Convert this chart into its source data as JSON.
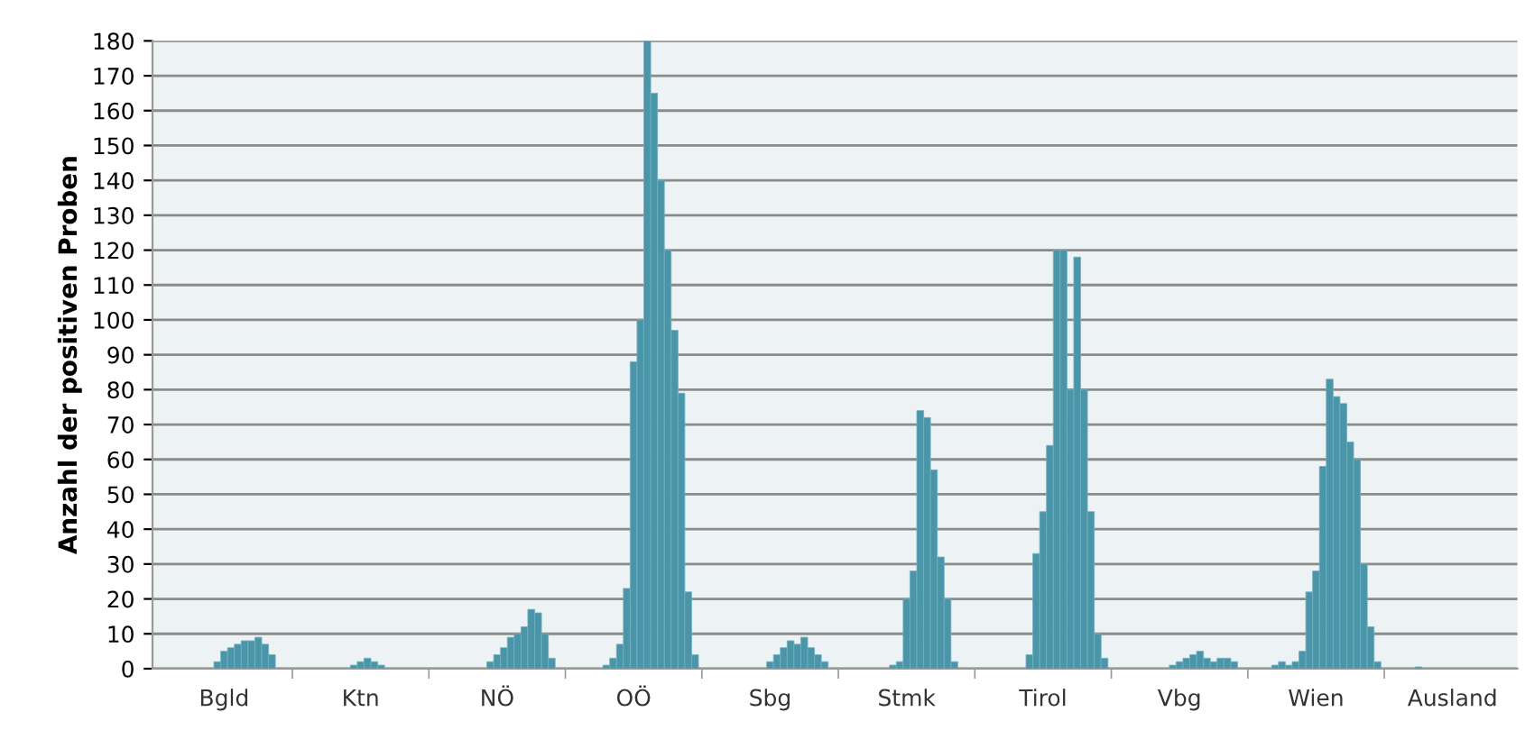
{
  "chart_data": {
    "type": "bar",
    "ylabel": "Anzahl der positiven Proben",
    "categories": [
      null,
      null,
      null,
      null,
      null,
      null,
      null,
      null,
      null,
      null,
      "Bgld",
      null,
      null,
      null,
      null,
      null,
      null,
      null,
      null,
      null,
      null,
      null,
      null,
      null,
      null,
      null,
      null,
      null,
      null,
      null,
      "Ktn",
      null,
      null,
      null,
      null,
      null,
      null,
      null,
      null,
      null,
      null,
      null,
      null,
      null,
      null,
      null,
      null,
      null,
      null,
      null,
      "NÖ",
      null,
      null,
      null,
      null,
      null,
      null,
      null,
      null,
      null,
      null,
      null,
      null,
      null,
      null,
      null,
      null,
      null,
      null,
      null,
      "OÖ",
      null,
      null,
      null,
      null,
      null,
      null,
      null,
      null,
      null,
      null,
      null,
      null,
      null,
      null,
      null,
      null,
      null,
      null,
      null,
      "Sbg",
      null,
      null,
      null,
      null,
      null,
      null,
      null,
      null,
      null,
      null,
      null,
      null,
      null,
      null,
      null,
      null,
      null,
      null,
      null,
      "Stmk",
      null,
      null,
      null,
      null,
      null,
      null,
      null,
      null,
      null,
      null,
      null,
      null,
      null,
      null,
      null,
      null,
      null,
      null,
      null,
      "Tirol",
      null,
      null,
      null,
      null,
      null,
      null,
      null,
      null,
      null,
      null,
      null,
      null,
      null,
      null,
      null,
      null,
      null,
      null,
      null,
      "Vbg",
      null,
      null,
      null,
      null,
      null,
      null,
      null,
      null,
      null,
      null,
      null,
      null,
      null,
      null,
      null,
      null,
      null,
      null,
      null,
      "Wien",
      null,
      null,
      null,
      null,
      null,
      null,
      null,
      null,
      null,
      null,
      null,
      null,
      null,
      null,
      null,
      null,
      null,
      null,
      null,
      "Ausland",
      null,
      null,
      null,
      null,
      null,
      null,
      null,
      null,
      null
    ],
    "values": [
      null,
      null,
      null,
      null,
      null,
      null,
      null,
      null,
      null,
      2,
      5,
      6,
      7,
      8,
      8,
      9,
      7,
      4,
      null,
      null,
      null,
      null,
      null,
      null,
      null,
      null,
      null,
      null,
      null,
      1,
      2,
      3,
      2,
      1,
      null,
      null,
      null,
      null,
      null,
      null,
      null,
      null,
      null,
      null,
      null,
      null,
      null,
      null,
      null,
      2,
      4,
      6,
      9,
      10,
      12,
      17,
      16,
      10,
      3,
      null,
      null,
      null,
      null,
      null,
      null,
      null,
      1,
      3,
      7,
      23,
      88,
      100,
      180,
      165,
      140,
      120,
      97,
      79,
      22,
      4,
      null,
      null,
      null,
      null,
      null,
      null,
      null,
      null,
      null,
      null,
      2,
      4,
      6,
      8,
      7,
      9,
      6,
      4,
      2,
      null,
      null,
      null,
      null,
      null,
      null,
      null,
      null,
      null,
      1,
      2,
      20,
      28,
      74,
      72,
      57,
      32,
      20,
      2,
      null,
      null,
      null,
      null,
      null,
      null,
      null,
      null,
      null,
      null,
      4,
      33,
      45,
      64,
      120,
      120,
      80,
      118,
      80,
      45,
      10,
      3,
      null,
      null,
      null,
      null,
      null,
      null,
      null,
      null,
      null,
      1,
      2,
      3,
      4,
      5,
      3,
      2,
      3,
      3,
      2,
      null,
      null,
      null,
      null,
      null,
      1,
      2,
      1,
      2,
      5,
      22,
      28,
      58,
      83,
      78,
      76,
      65,
      60,
      30,
      12,
      2,
      null,
      null,
      null,
      null,
      null,
      0.5,
      null,
      null,
      null,
      null,
      null,
      null,
      null,
      null,
      null,
      null,
      null,
      null,
      null,
      null
    ],
    "color": "#4a95a8",
    "ylim": [
      0,
      180
    ],
    "yticks": [
      0,
      10,
      20,
      30,
      40,
      50,
      60,
      70,
      80,
      90,
      100,
      110,
      120,
      130,
      140,
      150,
      160,
      170,
      180
    ],
    "grid": "y",
    "legend": false
  }
}
